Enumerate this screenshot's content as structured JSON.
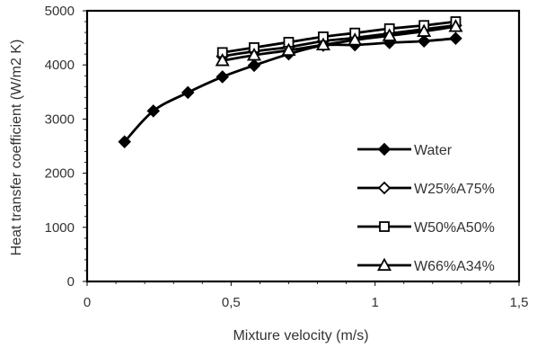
{
  "chart_data": {
    "type": "line",
    "xlabel": "Mixture velocity (m/s)",
    "ylabel": "Heat transfer coefficient (W/m2 K)",
    "xlim": [
      0,
      1.5
    ],
    "ylim": [
      0,
      5000
    ],
    "x_ticks": [
      "0",
      "0,5",
      "1",
      "1,5"
    ],
    "y_ticks": [
      "0",
      "1000",
      "2000",
      "3000",
      "4000",
      "5000"
    ],
    "x_tick_values": [
      0,
      0.5,
      1,
      1.5
    ],
    "y_tick_values": [
      0,
      1000,
      2000,
      3000,
      4000,
      5000
    ],
    "grid": false,
    "legend_position": "bottom-right",
    "series": [
      {
        "name": "Water",
        "marker": "diamond-filled",
        "x": [
          0.13,
          0.23,
          0.35,
          0.47,
          0.58,
          0.7,
          0.82,
          0.93,
          1.05,
          1.17,
          1.28
        ],
        "y": [
          2580,
          3150,
          3490,
          3780,
          3990,
          4200,
          4360,
          4370,
          4410,
          4440,
          4490
        ]
      },
      {
        "name": "W25%A75%",
        "marker": "diamond-open",
        "x": [
          0.47,
          0.58,
          0.7,
          0.82,
          0.93,
          1.05,
          1.17,
          1.28
        ],
        "y": [
          4160,
          4250,
          4330,
          4440,
          4500,
          4580,
          4660,
          4730
        ]
      },
      {
        "name": "W50%A50%",
        "marker": "square-open",
        "x": [
          0.47,
          0.58,
          0.7,
          0.82,
          0.93,
          1.05,
          1.17,
          1.28
        ],
        "y": [
          4230,
          4320,
          4420,
          4520,
          4590,
          4670,
          4730,
          4800
        ]
      },
      {
        "name": "W66%A34%",
        "marker": "triangle-open",
        "x": [
          0.47,
          0.58,
          0.7,
          0.82,
          0.93,
          1.05,
          1.17,
          1.28
        ],
        "y": [
          4080,
          4180,
          4270,
          4370,
          4460,
          4540,
          4620,
          4710
        ]
      }
    ],
    "colors": {
      "line": "#000000",
      "text": "#333333",
      "background": "#ffffff"
    }
  }
}
